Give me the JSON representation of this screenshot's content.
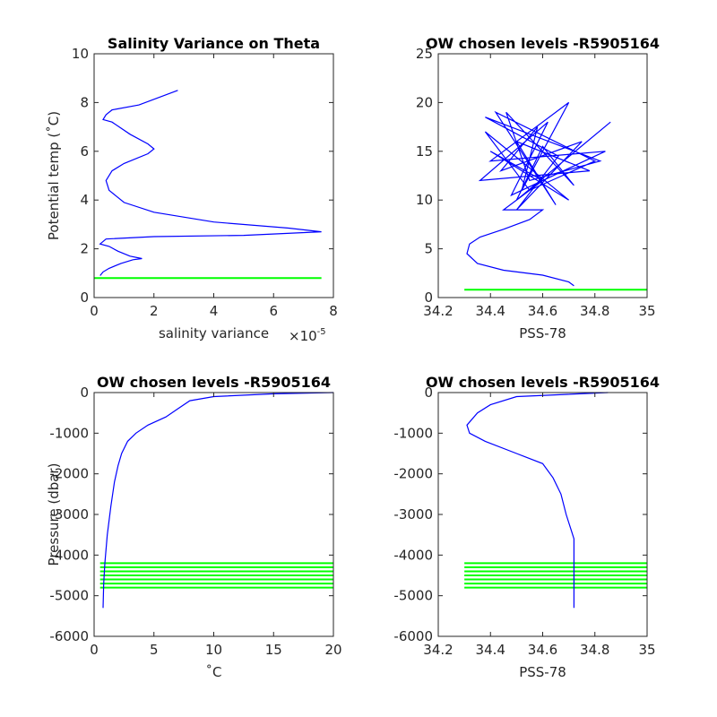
{
  "chart_data": [
    {
      "type": "line",
      "title": "Salinity Variance on Theta",
      "xlabel": "salinity variance",
      "ylabel": "Potential temp (˚C)",
      "x_exponent": {
        "base": "×10",
        "exp": "-5"
      },
      "xlim": [
        0,
        8
      ],
      "ylim": [
        0,
        10
      ],
      "xticks": [
        0,
        2,
        4,
        6,
        8
      ],
      "yticks": [
        0,
        2,
        4,
        6,
        8,
        10
      ],
      "series": [
        {
          "color": "#0000ff",
          "x": [
            2.8,
            1.5,
            0.6,
            0.4,
            0.3,
            0.6,
            1.2,
            1.8,
            2.0,
            1.8,
            1.0,
            0.6,
            0.4,
            0.5,
            1.0,
            2.0,
            4.0,
            6.5,
            7.6,
            5,
            2,
            0.4,
            0.2,
            0.5,
            0.8,
            1.2,
            1.6,
            1.3,
            0.9,
            0.5,
            0.3,
            0.2
          ],
          "values": [
            8.5,
            7.9,
            7.7,
            7.5,
            7.3,
            7.2,
            6.7,
            6.3,
            6.1,
            5.9,
            5.5,
            5.2,
            4.8,
            4.4,
            3.9,
            3.5,
            3.1,
            2.85,
            2.7,
            2.55,
            2.5,
            2.4,
            2.2,
            2.1,
            1.9,
            1.7,
            1.6,
            1.55,
            1.4,
            1.2,
            1.05,
            0.9
          ]
        }
      ],
      "hlines": {
        "color": "#00ff00",
        "xrange": [
          0,
          7.6
        ],
        "values": [
          0.8
        ]
      }
    },
    {
      "type": "line",
      "title": "OW chosen levels -R5905164",
      "xlabel": "PSS-78",
      "xlim": [
        34.2,
        35
      ],
      "ylim": [
        0,
        25
      ],
      "xticks": [
        34.2,
        34.4,
        34.6,
        34.8,
        35
      ],
      "yticks": [
        0,
        5,
        10,
        15,
        20,
        25
      ],
      "series": [
        {
          "color": "#0000ff",
          "x": [
            34.72,
            34.7,
            34.6,
            34.45,
            34.35,
            34.31,
            34.32,
            34.36,
            34.45,
            34.55,
            34.6,
            34.45,
            34.6,
            34.4,
            34.7,
            34.38,
            34.55,
            34.8,
            34.42,
            34.65,
            34.5,
            34.78,
            34.36,
            34.62,
            34.48,
            34.84,
            34.4,
            34.7,
            34.52,
            34.58,
            34.44,
            34.75,
            34.5,
            34.66,
            34.38,
            34.82,
            34.55,
            34.46,
            34.72,
            34.6,
            34.5,
            34.86
          ],
          "values": [
            1.2,
            1.6,
            2.3,
            2.8,
            3.5,
            4.5,
            5.5,
            6.2,
            7,
            8,
            9,
            9,
            12,
            15,
            10,
            17,
            11,
            14,
            19,
            9.5,
            16,
            13,
            12,
            18,
            10.5,
            15,
            14,
            20,
            11,
            17.5,
            13,
            16,
            9,
            14.5,
            18.5,
            14,
            12,
            19,
            11.5,
            15.5,
            10,
            18
          ]
        }
      ],
      "hlines": {
        "color": "#00ff00",
        "xrange": [
          34.3,
          35
        ],
        "values": [
          0.8
        ]
      }
    },
    {
      "type": "line",
      "title": "OW chosen levels -R5905164",
      "xlabel": "˚C",
      "ylabel": "Pressure (dbar)",
      "xlim": [
        0,
        20
      ],
      "ylim": [
        -6000,
        0
      ],
      "xticks": [
        0,
        5,
        10,
        15,
        20
      ],
      "yticks": [
        -6000,
        -5000,
        -4000,
        -3000,
        -2000,
        -1000,
        0
      ],
      "series": [
        {
          "color": "#0000ff",
          "x": [
            20,
            15,
            10,
            8,
            7,
            6,
            4.5,
            3.5,
            2.8,
            2.3,
            2,
            1.7,
            1.4,
            1.1,
            0.9,
            0.8,
            0.75
          ],
          "values": [
            0,
            -30,
            -100,
            -200,
            -400,
            -600,
            -800,
            -1000,
            -1200,
            -1500,
            -1800,
            -2200,
            -2800,
            -3500,
            -4200,
            -4700,
            -5300
          ]
        }
      ],
      "hlines": {
        "color": "#00ff00",
        "xrange": [
          0.5,
          20
        ],
        "values": [
          -4200,
          -4300,
          -4400,
          -4500,
          -4600,
          -4700,
          -4800
        ]
      }
    },
    {
      "type": "line",
      "title": "OW chosen levels -R5905164",
      "xlabel": "PSS-78",
      "xlim": [
        34.2,
        35
      ],
      "ylim": [
        -6000,
        0
      ],
      "xticks": [
        34.2,
        34.4,
        34.6,
        34.8,
        35
      ],
      "yticks": [
        -6000,
        -5000,
        -4000,
        -3000,
        -2000,
        -1000,
        0
      ],
      "series": [
        {
          "color": "#0000ff",
          "x": [
            34.85,
            34.5,
            34.4,
            34.35,
            34.31,
            34.32,
            34.38,
            34.5,
            34.6,
            34.64,
            34.67,
            34.69,
            34.71,
            34.72,
            34.72,
            34.72
          ],
          "values": [
            0,
            -100,
            -300,
            -500,
            -800,
            -1000,
            -1200,
            -1500,
            -1750,
            -2100,
            -2500,
            -3000,
            -3400,
            -3600,
            -4000,
            -5300
          ]
        }
      ],
      "hlines": {
        "color": "#00ff00",
        "xrange": [
          34.3,
          35
        ],
        "values": [
          -4200,
          -4300,
          -4400,
          -4500,
          -4600,
          -4700,
          -4800
        ]
      }
    }
  ]
}
